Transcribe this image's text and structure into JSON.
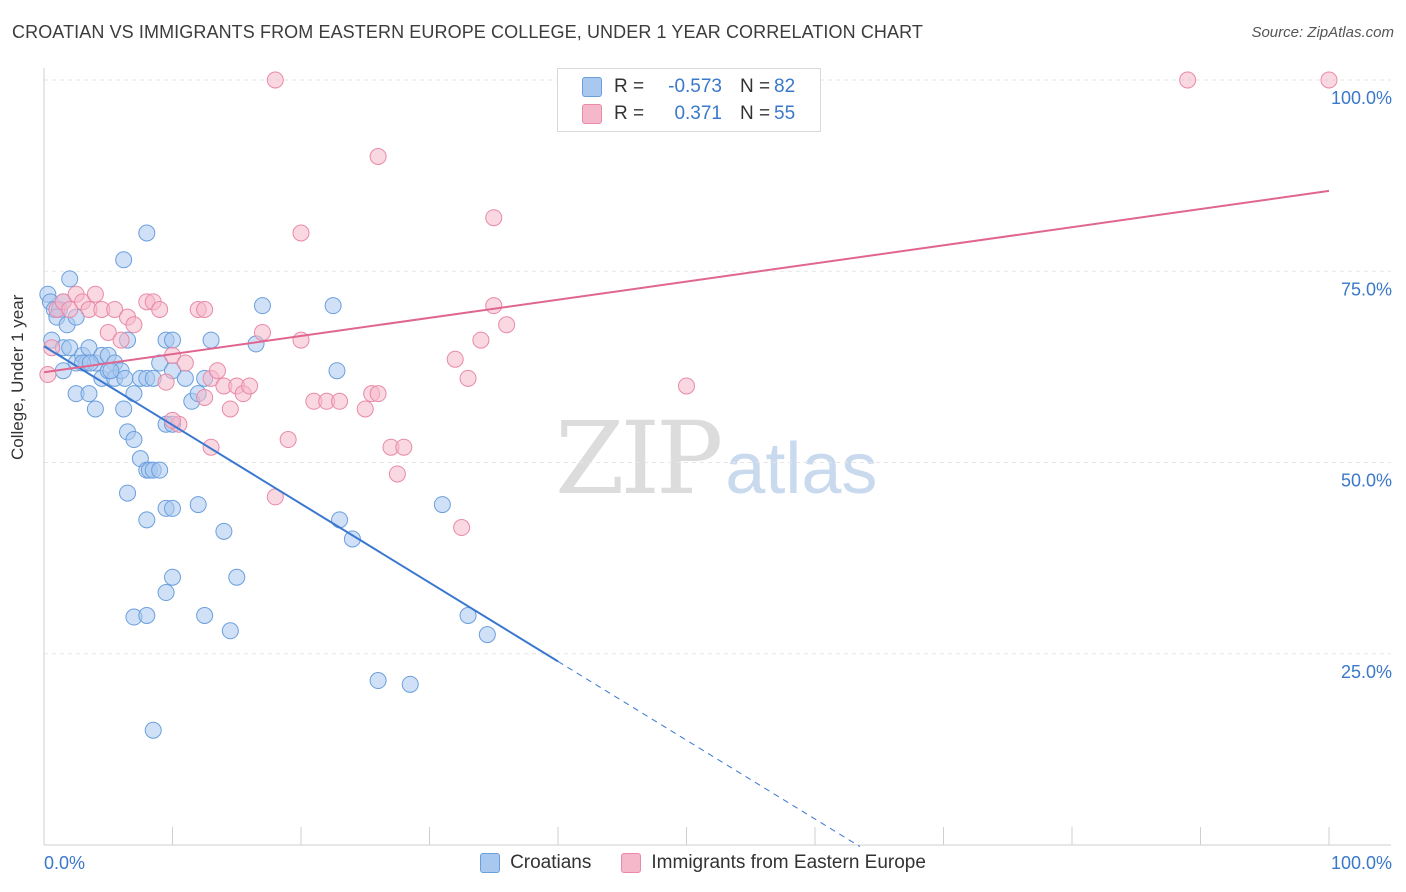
{
  "header": {
    "title": "CROATIAN VS IMMIGRANTS FROM EASTERN EUROPE COLLEGE, UNDER 1 YEAR CORRELATION CHART",
    "source": "Source: ZipAtlas.com"
  },
  "watermark": {
    "main": "ZIP",
    "suffix": "atlas"
  },
  "legend": {
    "rows": [
      {
        "r_label": "R =",
        "r_value": "-0.573",
        "n_label": "N =",
        "n_value": "82"
      },
      {
        "r_label": "R =",
        "r_value": "0.371",
        "n_label": "N =",
        "n_value": "55"
      }
    ]
  },
  "bottom_legend": {
    "items": [
      "Croatians",
      "Immigrants from Eastern Europe"
    ]
  },
  "colors": {
    "blue_fill": "#a9c8f0",
    "blue_stroke": "#6b9fdc",
    "blue_line": "#3a78d0",
    "pink_fill": "#f5b8cb",
    "pink_stroke": "#e88aa8",
    "pink_line": "#e06690",
    "axis_text": "#3a78c9",
    "grid": "#e6e6e6"
  },
  "chart_data": {
    "type": "scatter",
    "title": "CROATIAN VS IMMIGRANTS FROM EASTERN EUROPE COLLEGE, UNDER 1 YEAR CORRELATION CHART",
    "xlabel": "",
    "ylabel": "College, Under 1 year",
    "xlim": [
      0,
      100
    ],
    "ylim": [
      0,
      100
    ],
    "x_tick_labels": [
      {
        "value": 0,
        "label": "0.0%"
      },
      {
        "value": 100,
        "label": "100.0%"
      }
    ],
    "y_tick_labels": [
      {
        "value": 25,
        "label": "25.0%"
      },
      {
        "value": 50,
        "label": "50.0%"
      },
      {
        "value": 75,
        "label": "75.0%"
      },
      {
        "value": 100,
        "label": "100.0%"
      }
    ],
    "series": [
      {
        "name": "Croatians",
        "color": "blue",
        "trend": {
          "x0": 0,
          "y0": 65.2,
          "x1": 40,
          "y1": 24.0,
          "dash_to_x": 63.5
        },
        "points": [
          [
            0.3,
            72
          ],
          [
            0.5,
            71
          ],
          [
            0.8,
            70
          ],
          [
            1.2,
            70
          ],
          [
            1.5,
            71
          ],
          [
            2,
            74
          ],
          [
            0.6,
            66
          ],
          [
            1,
            69
          ],
          [
            1.8,
            68
          ],
          [
            2.5,
            69
          ],
          [
            1.5,
            65
          ],
          [
            2,
            65
          ],
          [
            2.5,
            63
          ],
          [
            3,
            64
          ],
          [
            3.3,
            63
          ],
          [
            3.5,
            65
          ],
          [
            4,
            63
          ],
          [
            4.5,
            64
          ],
          [
            5,
            64
          ],
          [
            5.5,
            63
          ],
          [
            1.5,
            62
          ],
          [
            2.5,
            59
          ],
          [
            3,
            63
          ],
          [
            3.5,
            59
          ],
          [
            4,
            57
          ],
          [
            4.5,
            61
          ],
          [
            5,
            62
          ],
          [
            5.5,
            61
          ],
          [
            6,
            62
          ],
          [
            6.3,
            61
          ],
          [
            6.5,
            66
          ],
          [
            6.2,
            57
          ],
          [
            7,
            59
          ],
          [
            7.5,
            61
          ],
          [
            8,
            61
          ],
          [
            8.5,
            61
          ],
          [
            9,
            63
          ],
          [
            9.5,
            66
          ],
          [
            10,
            66
          ],
          [
            10,
            62
          ],
          [
            11,
            61
          ],
          [
            11.5,
            58
          ],
          [
            12,
            59
          ],
          [
            12.5,
            61
          ],
          [
            13,
            66
          ],
          [
            16.5,
            65.5
          ],
          [
            17,
            70.5
          ],
          [
            22.5,
            70.5
          ],
          [
            22.8,
            62
          ],
          [
            6.5,
            54
          ],
          [
            7,
            53
          ],
          [
            7.5,
            50.5
          ],
          [
            8,
            49
          ],
          [
            8.2,
            49
          ],
          [
            8.5,
            49
          ],
          [
            9,
            49
          ],
          [
            9.5,
            55
          ],
          [
            10,
            55
          ],
          [
            6.5,
            46
          ],
          [
            8,
            42.5
          ],
          [
            9.5,
            44
          ],
          [
            10,
            44
          ],
          [
            12,
            44.5
          ],
          [
            14,
            41
          ],
          [
            23,
            42.5
          ],
          [
            24,
            40
          ],
          [
            31,
            44.5
          ],
          [
            10,
            35
          ],
          [
            15,
            35
          ],
          [
            9.5,
            33
          ],
          [
            7,
            29.8
          ],
          [
            8,
            30
          ],
          [
            12.5,
            30
          ],
          [
            14.5,
            28
          ],
          [
            33,
            30
          ],
          [
            34.5,
            27.5
          ],
          [
            26,
            21.5
          ],
          [
            28.5,
            21
          ],
          [
            8.5,
            15
          ],
          [
            6.2,
            76.5
          ],
          [
            8,
            80
          ],
          [
            5.2,
            62
          ],
          [
            3.6,
            63
          ]
        ]
      },
      {
        "name": "Immigrants from Eastern Europe",
        "color": "pink",
        "trend": {
          "x0": 0,
          "y0": 61.8,
          "x1": 100,
          "y1": 85.5
        },
        "points": [
          [
            0.3,
            61.5
          ],
          [
            0.6,
            65
          ],
          [
            1,
            70
          ],
          [
            1.5,
            71
          ],
          [
            2,
            70
          ],
          [
            2.5,
            72
          ],
          [
            3,
            71
          ],
          [
            3.5,
            70
          ],
          [
            4,
            72
          ],
          [
            4.5,
            70
          ],
          [
            5,
            67
          ],
          [
            5.5,
            70
          ],
          [
            6,
            66
          ],
          [
            6.5,
            69
          ],
          [
            7,
            68
          ],
          [
            8,
            71
          ],
          [
            8.5,
            71
          ],
          [
            9,
            70
          ],
          [
            10,
            64
          ],
          [
            11,
            63
          ],
          [
            12,
            70
          ],
          [
            12.5,
            70
          ],
          [
            13,
            61
          ],
          [
            13.5,
            62
          ],
          [
            14,
            60
          ],
          [
            15,
            60
          ],
          [
            15.5,
            59
          ],
          [
            16,
            60
          ],
          [
            17,
            67
          ],
          [
            20,
            66
          ],
          [
            21,
            58
          ],
          [
            22,
            58
          ],
          [
            23,
            58
          ],
          [
            25,
            57
          ],
          [
            25.5,
            59
          ],
          [
            26,
            59
          ],
          [
            27,
            52
          ],
          [
            27.5,
            48.5
          ],
          [
            28,
            52
          ],
          [
            9.5,
            60.5
          ],
          [
            10.5,
            55
          ],
          [
            12.5,
            58.5
          ],
          [
            14.5,
            57
          ],
          [
            19,
            53
          ],
          [
            18,
            45.5
          ],
          [
            32,
            63.5
          ],
          [
            33,
            61
          ],
          [
            34,
            66
          ],
          [
            35,
            70.5
          ],
          [
            36,
            68
          ],
          [
            32.5,
            41.5
          ],
          [
            50,
            60
          ],
          [
            26,
            90
          ],
          [
            35,
            82
          ],
          [
            20,
            80
          ],
          [
            18,
            100
          ],
          [
            89,
            100
          ],
          [
            100,
            100
          ],
          [
            10,
            55.5
          ],
          [
            13,
            52
          ]
        ]
      }
    ]
  }
}
